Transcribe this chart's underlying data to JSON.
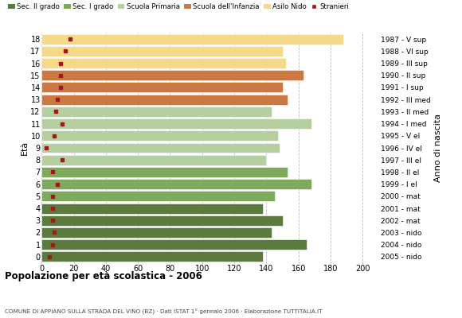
{
  "ages": [
    18,
    17,
    16,
    15,
    14,
    13,
    12,
    11,
    10,
    9,
    8,
    7,
    6,
    5,
    4,
    3,
    2,
    1,
    0
  ],
  "years": [
    "1987 - V sup",
    "1988 - VI sup",
    "1989 - III sup",
    "1990 - II sup",
    "1991 - I sup",
    "1992 - III med",
    "1993 - II med",
    "1994 - I med",
    "1995 - V el",
    "1996 - IV el",
    "1997 - III el",
    "1998 - II el",
    "1999 - I el",
    "2000 - mat",
    "2001 - mat",
    "2002 - mat",
    "2003 - nido",
    "2004 - nido",
    "2005 - nido"
  ],
  "bar_values": [
    138,
    165,
    143,
    150,
    138,
    145,
    168,
    153,
    140,
    148,
    147,
    168,
    143,
    153,
    150,
    163,
    152,
    150,
    188
  ],
  "stranieri": [
    5,
    7,
    8,
    7,
    7,
    7,
    10,
    7,
    13,
    3,
    8,
    13,
    9,
    10,
    12,
    12,
    12,
    15,
    18
  ],
  "bar_colors": [
    "#5b7a3d",
    "#5b7a3d",
    "#5b7a3d",
    "#5b7a3d",
    "#5b7a3d",
    "#7faa5e",
    "#7faa5e",
    "#7faa5e",
    "#b5cfa0",
    "#b5cfa0",
    "#b5cfa0",
    "#b5cfa0",
    "#b5cfa0",
    "#cc7843",
    "#cc7843",
    "#cc7843",
    "#f5d98b",
    "#f5d98b",
    "#f5d98b"
  ],
  "legend_labels": [
    "Sec. II grado",
    "Sec. I grado",
    "Scuola Primaria",
    "Scuola dell'Infanzia",
    "Asilo Nido",
    "Stranieri"
  ],
  "legend_colors": [
    "#5b7a3d",
    "#7faa5e",
    "#b5cfa0",
    "#cc7843",
    "#f5d98b",
    "#9b1c1c"
  ],
  "title": "Popolazione per età scolastica - 2006",
  "subtitle": "COMUNE DI APPIANO SULLA STRADA DEL VINO (BZ) · Dati ISTAT 1° gennaio 2006 · Elaborazione TUTTITALIA.IT",
  "ylabel": "Età",
  "xlabel_right": "Anno di nascita",
  "xlim": [
    0,
    210
  ],
  "background_color": "#ffffff",
  "grid_color": "#bbbbbb",
  "stranieri_color": "#9b1c1c"
}
